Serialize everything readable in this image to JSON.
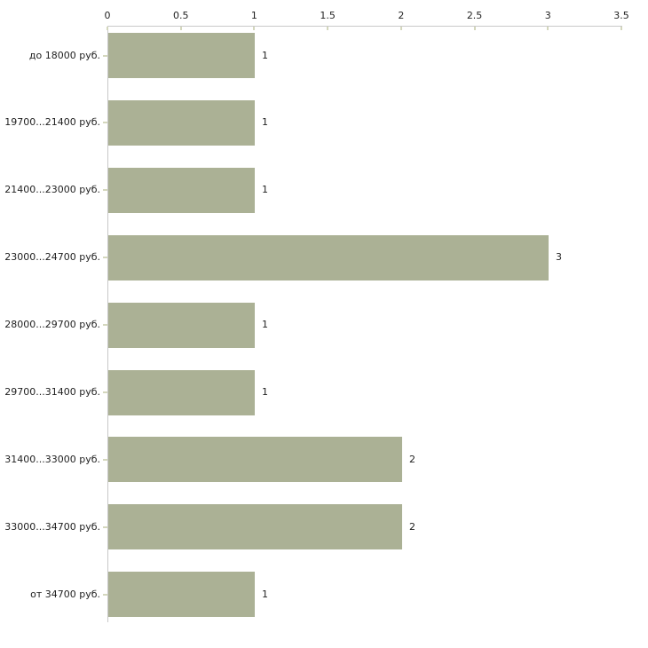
{
  "chart_data": {
    "type": "bar",
    "orientation": "horizontal",
    "title": "",
    "xlabel": "",
    "ylabel": "",
    "categories": [
      "до 18000 руб.",
      "19700...21400 руб.",
      "21400...23000 руб.",
      "23000...24700 руб.",
      "28000...29700 руб.",
      "29700...31400 руб.",
      "31400...33000 руб.",
      "33000...34700 руб.",
      "от 34700 руб."
    ],
    "values": [
      1,
      1,
      1,
      3,
      1,
      1,
      2,
      2,
      1
    ],
    "value_labels": [
      "1",
      "1",
      "1",
      "3",
      "1",
      "1",
      "2",
      "2",
      "1"
    ],
    "x_ticks": [
      "0",
      "0.5",
      "1",
      "1.5",
      "2",
      "2.5",
      "3",
      "3.5"
    ],
    "x_tick_values": [
      0,
      0.5,
      1,
      1.5,
      2,
      2.5,
      3,
      3.5
    ],
    "xlim": [
      0,
      3.5
    ],
    "grid": false,
    "legend": "none",
    "axis_position": "top-left",
    "colors": {
      "bar": "#abb195",
      "axis": "#c9c9c9",
      "tick": "#d4d7bd",
      "text": "#1f1f1f",
      "background": "#ffffff"
    }
  }
}
